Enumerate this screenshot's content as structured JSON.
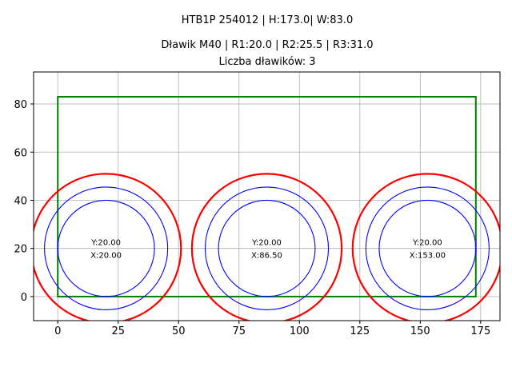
{
  "chart_data": {
    "type": "scatter",
    "title_lines": [
      "HTB1P 254012 | H:173.0| W:83.0",
      "Dławik M40 | R1:20.0 | R2:25.5 | R3:31.0",
      "Liczba dławików: 3"
    ],
    "xlim": [
      -10,
      183
    ],
    "ylim": [
      -10,
      93.3
    ],
    "xticks": [
      0,
      25,
      50,
      75,
      100,
      125,
      150,
      175
    ],
    "yticks": [
      0,
      20,
      40,
      60,
      80
    ],
    "grid": true,
    "rectangle": {
      "x": 0,
      "y": 0,
      "width": 173,
      "height": 83,
      "color": "#008000"
    },
    "radii": [
      {
        "r": 20,
        "color": "#0000ff"
      },
      {
        "r": 25.5,
        "color": "#0000ff"
      },
      {
        "r": 31,
        "color": "#ff0000"
      }
    ],
    "glands": [
      {
        "x": 20,
        "y": 20,
        "xlabel": "X:20.00",
        "ylabel": "Y:20.00"
      },
      {
        "x": 86.5,
        "y": 20,
        "xlabel": "X:86.50",
        "ylabel": "Y:20.00"
      },
      {
        "x": 153,
        "y": 20,
        "xlabel": "X:153.00",
        "ylabel": "Y:20.00"
      }
    ]
  }
}
